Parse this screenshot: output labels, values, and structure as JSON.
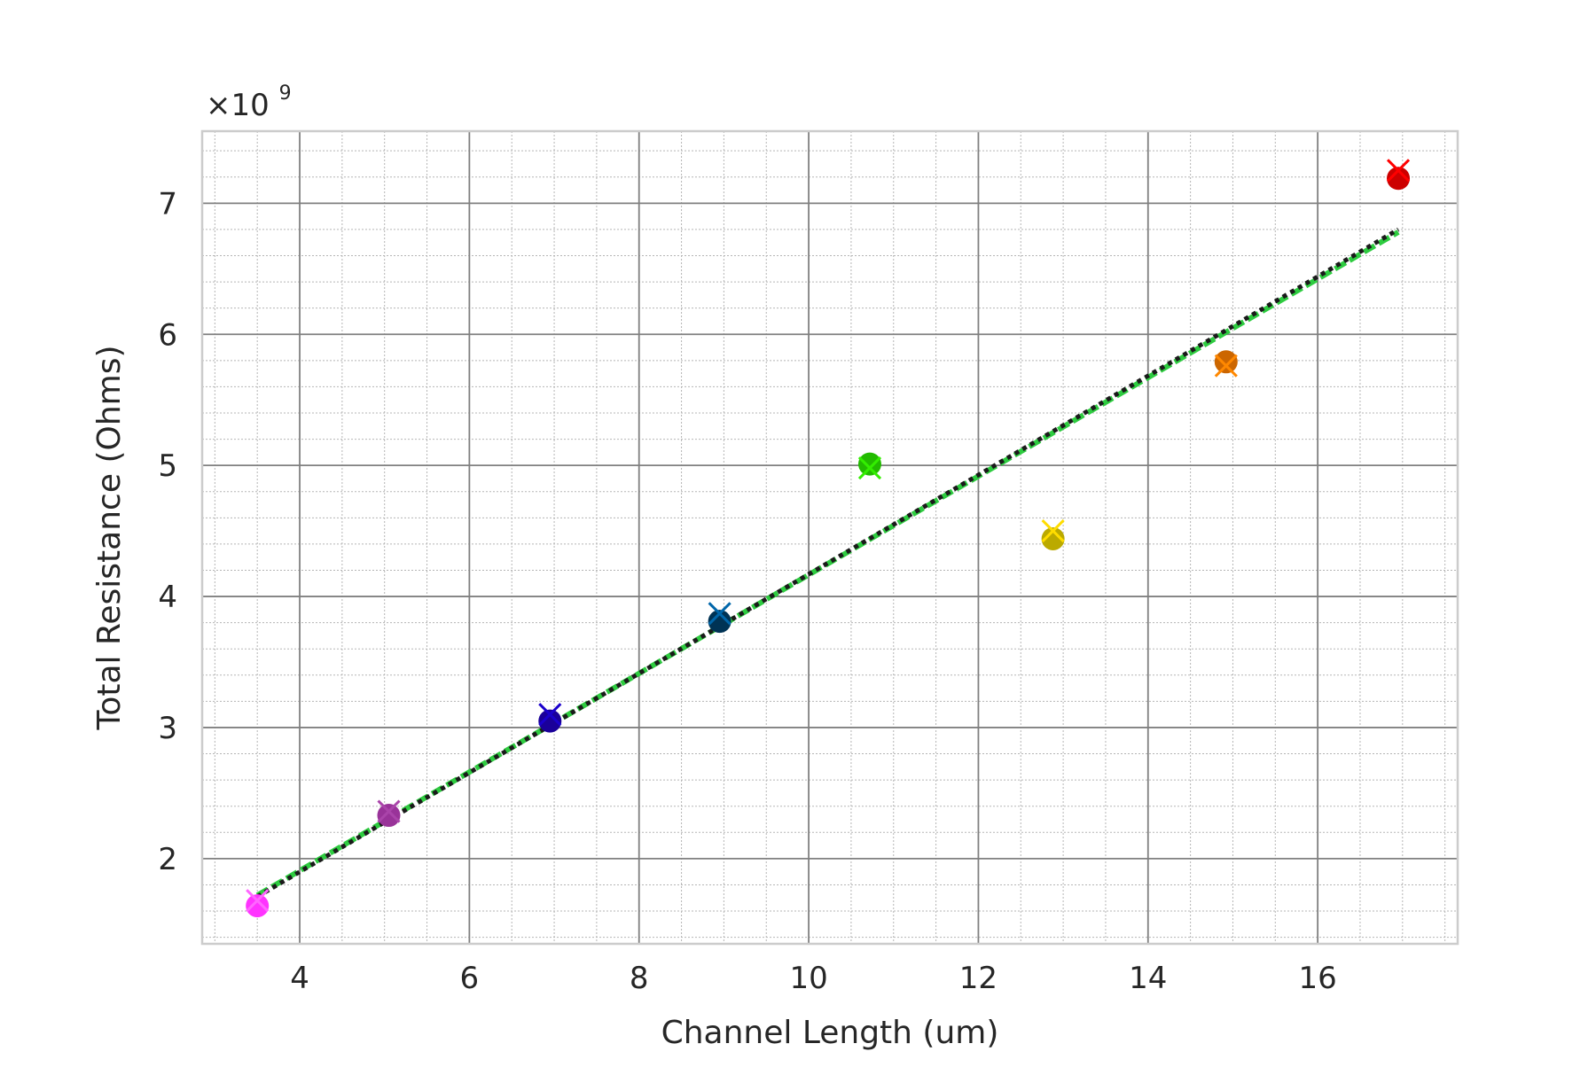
{
  "chart_data": {
    "type": "scatter",
    "title": "",
    "xlabel": "Channel Length (um)",
    "ylabel": "Total Resistance (Ohms)",
    "xlim": [
      2.85,
      17.65
    ],
    "ylim": [
      1.35,
      7.55
    ],
    "y_scale_factor": {
      "base": "×10",
      "exponent": "9"
    },
    "x_ticks": [
      4,
      6,
      8,
      10,
      12,
      14,
      16
    ],
    "x_tick_labels": [
      "4",
      "6",
      "8",
      "10",
      12,
      "14",
      "16"
    ],
    "y_ticks": [
      2,
      3,
      4,
      5,
      6,
      7
    ],
    "y_tick_labels": [
      "2",
      "3",
      "4",
      "5",
      "6",
      "7"
    ],
    "grid": {
      "major": true,
      "minor": true
    },
    "legend": "none",
    "points": [
      {
        "x": 3.5,
        "y": 1.64,
        "marker_y": 1.68,
        "color": "#ff33ff",
        "x_color": "#ff66ff"
      },
      {
        "x": 5.05,
        "y": 2.33,
        "marker_y": 2.36,
        "color": "#993399",
        "x_color": "#aa44aa"
      },
      {
        "x": 6.95,
        "y": 3.05,
        "marker_y": 3.1,
        "color": "#1a0099",
        "x_color": "#1a00cc"
      },
      {
        "x": 8.95,
        "y": 3.81,
        "marker_y": 3.87,
        "color": "#003355",
        "x_color": "#0066aa"
      },
      {
        "x": 10.72,
        "y": 5.01,
        "marker_y": 4.98,
        "color": "#22bb00",
        "x_color": "#33ee00"
      },
      {
        "x": 12.88,
        "y": 4.44,
        "marker_y": 4.5,
        "color": "#bbaa00",
        "x_color": "#ffdd00"
      },
      {
        "x": 14.92,
        "y": 5.79,
        "marker_y": 5.76,
        "color": "#cc6600",
        "x_color": "#ff8800"
      },
      {
        "x": 16.95,
        "y": 7.19,
        "marker_y": 7.25,
        "color": "#cc0000",
        "x_color": "#ff0000"
      }
    ],
    "fit_lines": [
      {
        "style": "dashed",
        "color": "#2ecc40",
        "x": [
          3.5,
          16.95
        ],
        "y": [
          1.72,
          6.78
        ]
      },
      {
        "style": "dotted",
        "color": "#1a1a1a",
        "x": [
          3.5,
          16.95
        ],
        "y": [
          1.71,
          6.8
        ]
      }
    ]
  }
}
